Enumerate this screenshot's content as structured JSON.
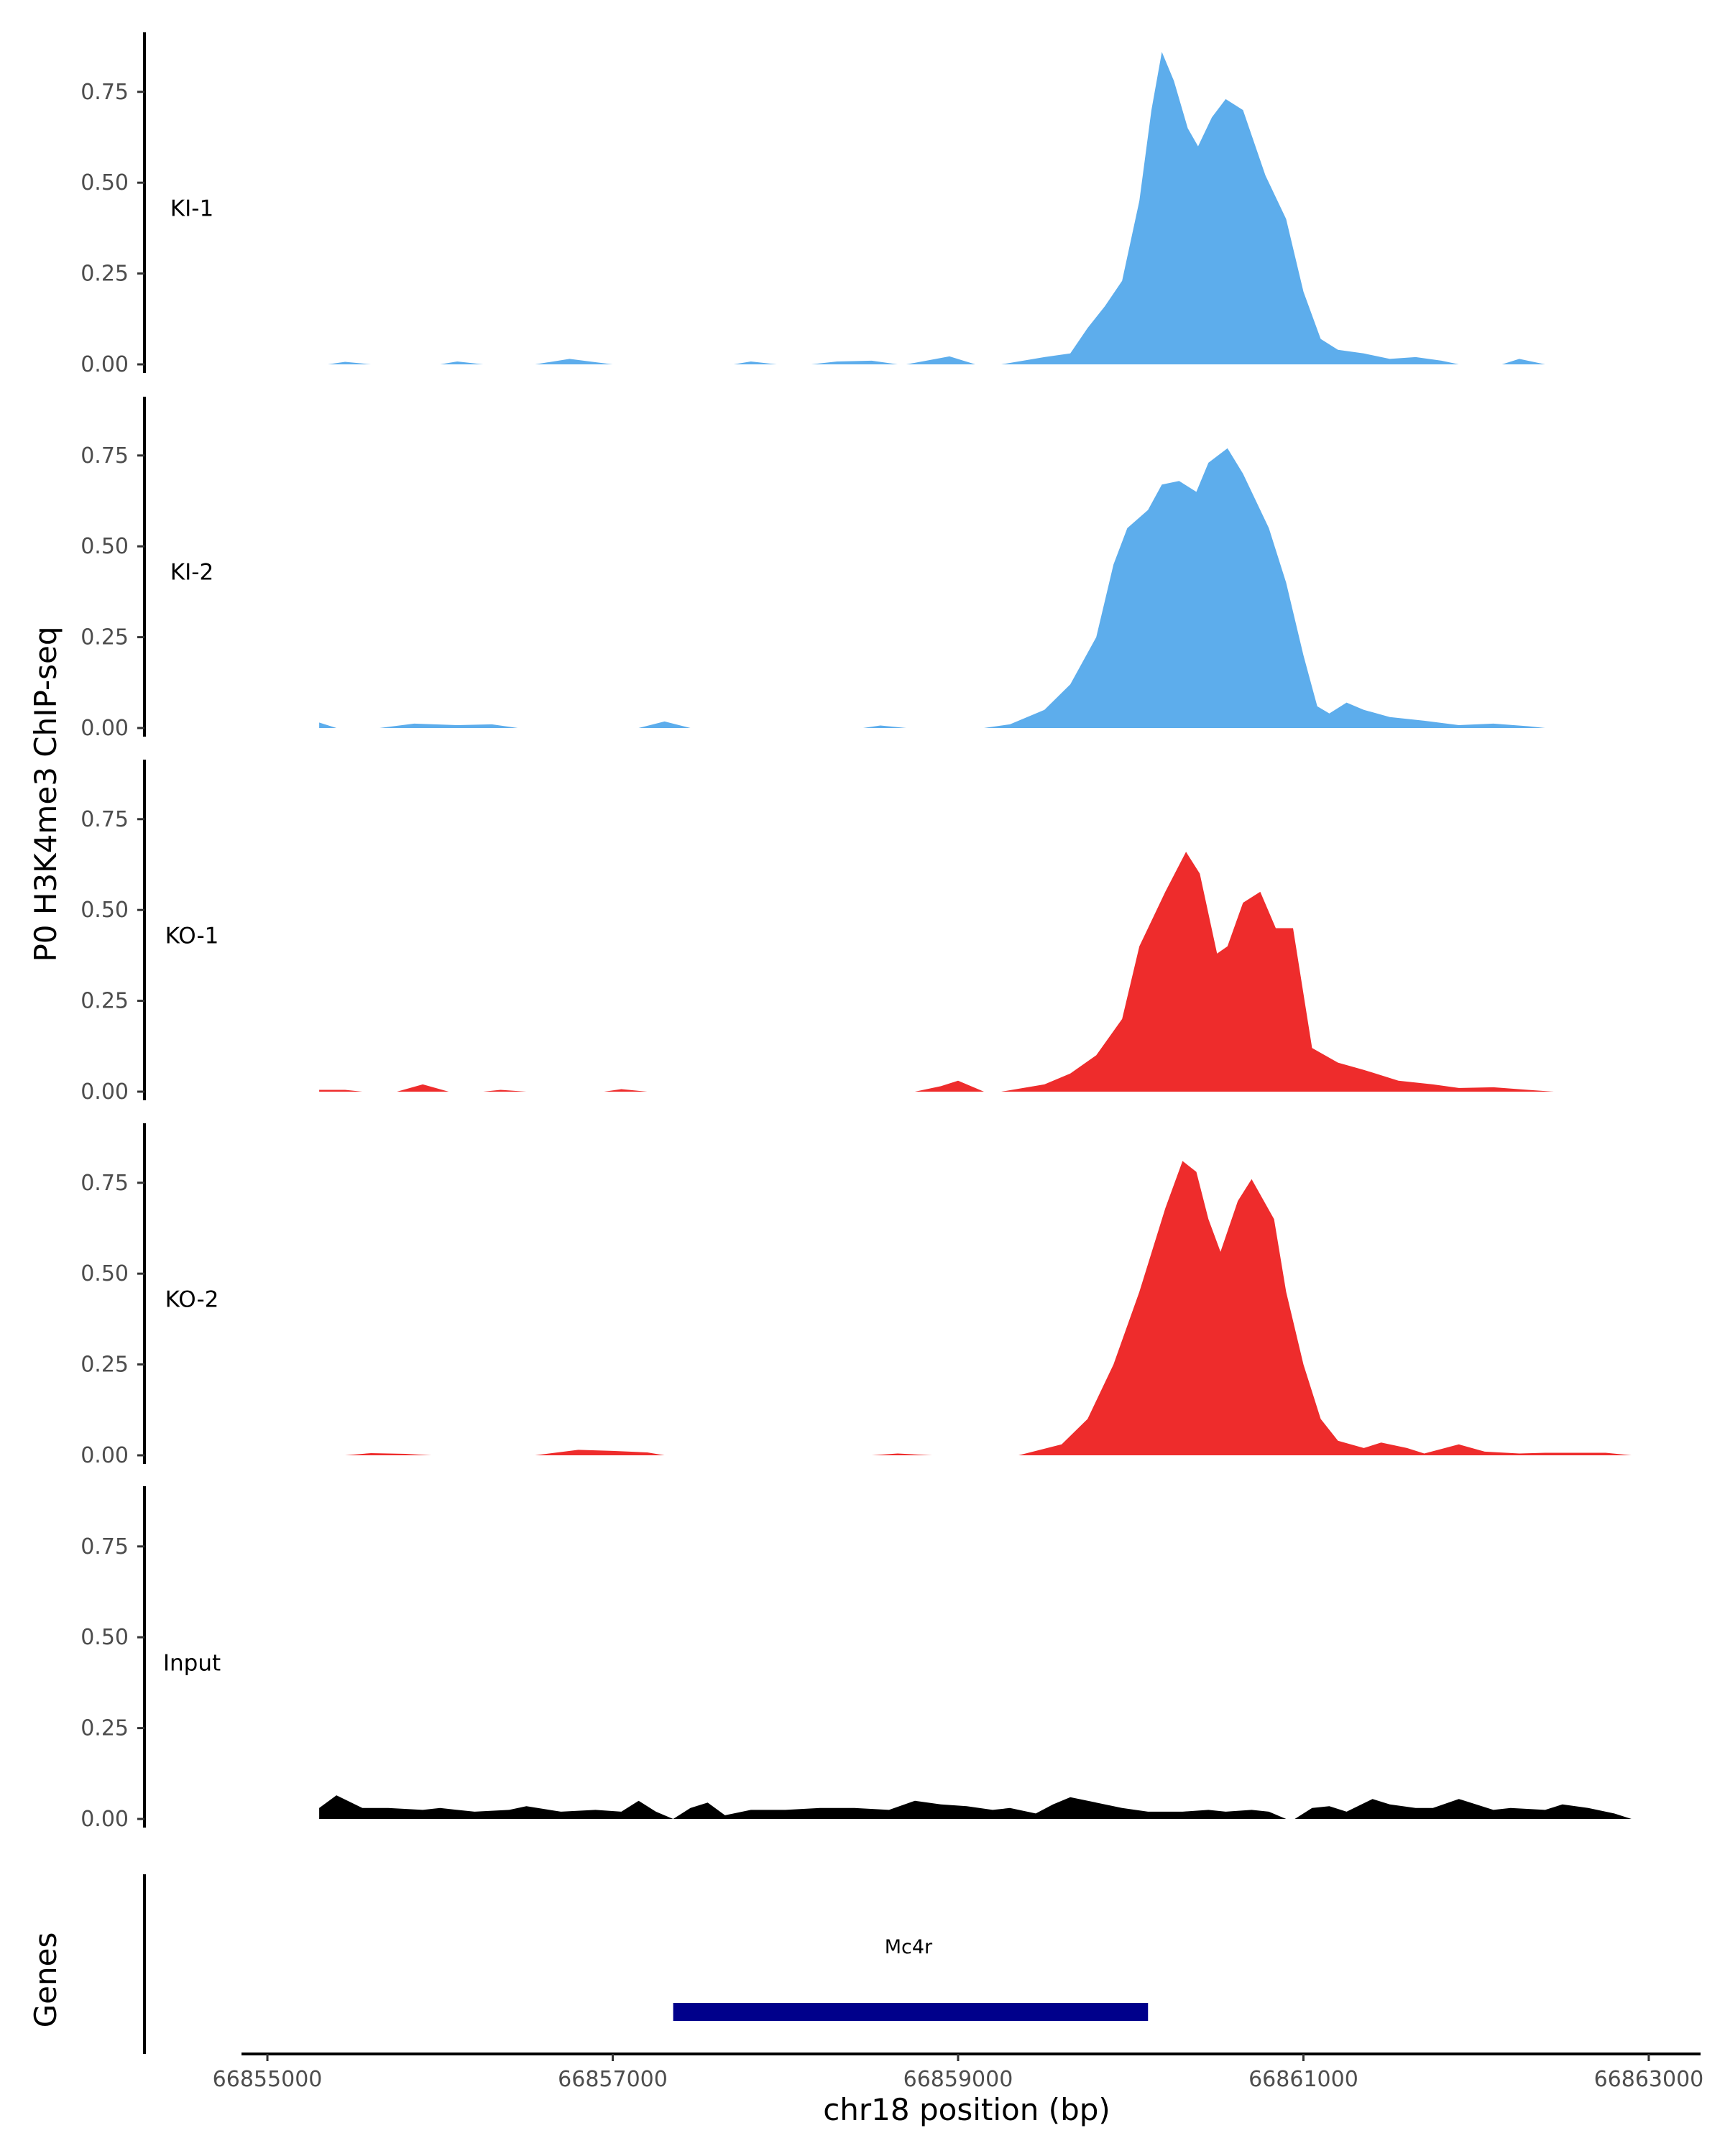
{
  "chart_data": {
    "type": "area",
    "title": "",
    "xlabel": "chr18 position (bp)",
    "ylabel": "P0 H3K4me3 ChIP-seq",
    "xlim": [
      66854850,
      66863300
    ],
    "ylim": [
      0,
      0.9
    ],
    "x_ticks": [
      66855000,
      66857000,
      66859000,
      66861000,
      66863000
    ],
    "x_tick_labels": [
      "66855000",
      "66857000",
      "66859000",
      "66861000",
      "66863000"
    ],
    "y_ticks": [
      0,
      0.25,
      0.5,
      0.75
    ],
    "y_tick_labels": [
      "0.00",
      "0.25",
      "0.50",
      "0.75"
    ],
    "tracks": [
      {
        "name": "KI-1",
        "color": "#5DADEC",
        "points": [
          [
            66855350,
            0
          ],
          [
            66855450,
            0.007
          ],
          [
            66855600,
            0
          ],
          [
            66856000,
            0
          ],
          [
            66856100,
            0.008
          ],
          [
            66856250,
            0
          ],
          [
            66856550,
            0
          ],
          [
            66856750,
            0.015
          ],
          [
            66856900,
            0.006
          ],
          [
            66857000,
            0
          ],
          [
            66857700,
            0
          ],
          [
            66857800,
            0.008
          ],
          [
            66857950,
            0
          ],
          [
            66858150,
            0
          ],
          [
            66858300,
            0.008
          ],
          [
            66858500,
            0.01
          ],
          [
            66858650,
            0
          ],
          [
            66858700,
            0
          ],
          [
            66858950,
            0.022
          ],
          [
            66859100,
            0
          ],
          [
            66859250,
            0
          ],
          [
            66859500,
            0.02
          ],
          [
            66859650,
            0.03
          ],
          [
            66859750,
            0.1
          ],
          [
            66859850,
            0.16
          ],
          [
            66859950,
            0.23
          ],
          [
            66860050,
            0.45
          ],
          [
            66860120,
            0.7
          ],
          [
            66860180,
            0.86
          ],
          [
            66860250,
            0.78
          ],
          [
            66860330,
            0.65
          ],
          [
            66860390,
            0.6
          ],
          [
            66860470,
            0.68
          ],
          [
            66860550,
            0.73
          ],
          [
            66860650,
            0.7
          ],
          [
            66860780,
            0.52
          ],
          [
            66860900,
            0.4
          ],
          [
            66861000,
            0.2
          ],
          [
            66861100,
            0.07
          ],
          [
            66861200,
            0.04
          ],
          [
            66861350,
            0.03
          ],
          [
            66861500,
            0.015
          ],
          [
            66861650,
            0.02
          ],
          [
            66861800,
            0.01
          ],
          [
            66861900,
            0
          ],
          [
            66862150,
            0
          ],
          [
            66862250,
            0.015
          ],
          [
            66862400,
            0
          ]
        ]
      },
      {
        "name": "KI-2",
        "color": "#5DADEC",
        "points": [
          [
            66855300,
            0.015
          ],
          [
            66855400,
            0
          ],
          [
            66855650,
            0
          ],
          [
            66855850,
            0.012
          ],
          [
            66856100,
            0.008
          ],
          [
            66856300,
            0.01
          ],
          [
            66856450,
            0
          ],
          [
            66857150,
            0
          ],
          [
            66857300,
            0.018
          ],
          [
            66857450,
            0
          ],
          [
            66858450,
            0
          ],
          [
            66858550,
            0.007
          ],
          [
            66858700,
            0
          ],
          [
            66859150,
            0
          ],
          [
            66859300,
            0.01
          ],
          [
            66859500,
            0.05
          ],
          [
            66859650,
            0.12
          ],
          [
            66859800,
            0.25
          ],
          [
            66859900,
            0.45
          ],
          [
            66859980,
            0.55
          ],
          [
            66860100,
            0.6
          ],
          [
            66860180,
            0.67
          ],
          [
            66860280,
            0.68
          ],
          [
            66860380,
            0.65
          ],
          [
            66860450,
            0.73
          ],
          [
            66860560,
            0.77
          ],
          [
            66860650,
            0.7
          ],
          [
            66860800,
            0.55
          ],
          [
            66860900,
            0.4
          ],
          [
            66861000,
            0.2
          ],
          [
            66861080,
            0.06
          ],
          [
            66861150,
            0.04
          ],
          [
            66861250,
            0.07
          ],
          [
            66861350,
            0.05
          ],
          [
            66861500,
            0.03
          ],
          [
            66861700,
            0.02
          ],
          [
            66861900,
            0.008
          ],
          [
            66862100,
            0.012
          ],
          [
            66862300,
            0.005
          ],
          [
            66862400,
            0
          ]
        ]
      },
      {
        "name": "KO-1",
        "color": "#EE2C2C",
        "points": [
          [
            66855300,
            0.005
          ],
          [
            66855450,
            0.005
          ],
          [
            66855550,
            0
          ],
          [
            66855750,
            0
          ],
          [
            66855900,
            0.02
          ],
          [
            66856050,
            0
          ],
          [
            66856250,
            0
          ],
          [
            66856350,
            0.005
          ],
          [
            66856500,
            0
          ],
          [
            66856950,
            0
          ],
          [
            66857050,
            0.007
          ],
          [
            66857200,
            0
          ],
          [
            66858750,
            0
          ],
          [
            66858900,
            0.015
          ],
          [
            66859000,
            0.03
          ],
          [
            66859150,
            0
          ],
          [
            66859250,
            0
          ],
          [
            66859500,
            0.02
          ],
          [
            66859650,
            0.05
          ],
          [
            66859800,
            0.1
          ],
          [
            66859950,
            0.2
          ],
          [
            66860050,
            0.4
          ],
          [
            66860200,
            0.55
          ],
          [
            66860320,
            0.66
          ],
          [
            66860400,
            0.6
          ],
          [
            66860500,
            0.38
          ],
          [
            66860560,
            0.4
          ],
          [
            66860650,
            0.52
          ],
          [
            66860750,
            0.55
          ],
          [
            66860840,
            0.45
          ],
          [
            66860940,
            0.45
          ],
          [
            66861050,
            0.12
          ],
          [
            66861200,
            0.08
          ],
          [
            66861350,
            0.06
          ],
          [
            66861550,
            0.03
          ],
          [
            66861750,
            0.02
          ],
          [
            66861900,
            0.01
          ],
          [
            66862100,
            0.012
          ],
          [
            66862300,
            0.005
          ],
          [
            66862450,
            0
          ]
        ]
      },
      {
        "name": "KO-2",
        "color": "#EE2C2C",
        "points": [
          [
            66855450,
            0
          ],
          [
            66855600,
            0.006
          ],
          [
            66855800,
            0.004
          ],
          [
            66855950,
            0
          ],
          [
            66856550,
            0
          ],
          [
            66856800,
            0.015
          ],
          [
            66857000,
            0.012
          ],
          [
            66857200,
            0.008
          ],
          [
            66857300,
            0
          ],
          [
            66858500,
            0
          ],
          [
            66858650,
            0.005
          ],
          [
            66858850,
            0
          ],
          [
            66859350,
            0
          ],
          [
            66859600,
            0.03
          ],
          [
            66859750,
            0.1
          ],
          [
            66859900,
            0.25
          ],
          [
            66860050,
            0.45
          ],
          [
            66860200,
            0.68
          ],
          [
            66860300,
            0.81
          ],
          [
            66860380,
            0.78
          ],
          [
            66860450,
            0.65
          ],
          [
            66860520,
            0.56
          ],
          [
            66860620,
            0.7
          ],
          [
            66860700,
            0.76
          ],
          [
            66860830,
            0.65
          ],
          [
            66860900,
            0.45
          ],
          [
            66861000,
            0.25
          ],
          [
            66861100,
            0.1
          ],
          [
            66861200,
            0.04
          ],
          [
            66861350,
            0.02
          ],
          [
            66861450,
            0.035
          ],
          [
            66861600,
            0.02
          ],
          [
            66861700,
            0.005
          ],
          [
            66861900,
            0.03
          ],
          [
            66862050,
            0.01
          ],
          [
            66862250,
            0.005
          ],
          [
            66862400,
            0.007
          ],
          [
            66862750,
            0.007
          ],
          [
            66862900,
            0
          ]
        ]
      },
      {
        "name": "Input",
        "color": "#000000",
        "points": [
          [
            66855300,
            0.03
          ],
          [
            66855400,
            0.065
          ],
          [
            66855550,
            0.03
          ],
          [
            66855700,
            0.03
          ],
          [
            66855900,
            0.025
          ],
          [
            66856000,
            0.03
          ],
          [
            66856200,
            0.02
          ],
          [
            66856400,
            0.025
          ],
          [
            66856500,
            0.035
          ],
          [
            66856700,
            0.02
          ],
          [
            66856900,
            0.025
          ],
          [
            66857050,
            0.02
          ],
          [
            66857150,
            0.05
          ],
          [
            66857250,
            0.02
          ],
          [
            66857350,
            0
          ],
          [
            66857450,
            0.03
          ],
          [
            66857550,
            0.045
          ],
          [
            66857650,
            0.01
          ],
          [
            66857800,
            0.025
          ],
          [
            66858000,
            0.025
          ],
          [
            66858200,
            0.03
          ],
          [
            66858400,
            0.03
          ],
          [
            66858600,
            0.025
          ],
          [
            66858750,
            0.05
          ],
          [
            66858900,
            0.04
          ],
          [
            66859050,
            0.035
          ],
          [
            66859200,
            0.025
          ],
          [
            66859300,
            0.03
          ],
          [
            66859450,
            0.015
          ],
          [
            66859550,
            0.04
          ],
          [
            66859650,
            0.06
          ],
          [
            66859800,
            0.045
          ],
          [
            66859950,
            0.03
          ],
          [
            66860100,
            0.02
          ],
          [
            66860300,
            0.02
          ],
          [
            66860450,
            0.025
          ],
          [
            66860550,
            0.02
          ],
          [
            66860700,
            0.025
          ],
          [
            66860800,
            0.02
          ],
          [
            66860900,
            0
          ],
          [
            66860950,
            0
          ],
          [
            66861050,
            0.03
          ],
          [
            66861150,
            0.035
          ],
          [
            66861250,
            0.02
          ],
          [
            66861400,
            0.055
          ],
          [
            66861500,
            0.04
          ],
          [
            66861650,
            0.03
          ],
          [
            66861750,
            0.03
          ],
          [
            66861900,
            0.055
          ],
          [
            66862000,
            0.04
          ],
          [
            66862100,
            0.025
          ],
          [
            66862200,
            0.03
          ],
          [
            66862400,
            0.025
          ],
          [
            66862500,
            0.04
          ],
          [
            66862650,
            0.03
          ],
          [
            66862800,
            0.015
          ],
          [
            66862900,
            0
          ]
        ]
      }
    ],
    "genes": {
      "title": "Genes",
      "items": [
        {
          "name": "Mc4r",
          "start": 66857350,
          "end": 66860100,
          "color": "#00008B"
        }
      ]
    }
  }
}
